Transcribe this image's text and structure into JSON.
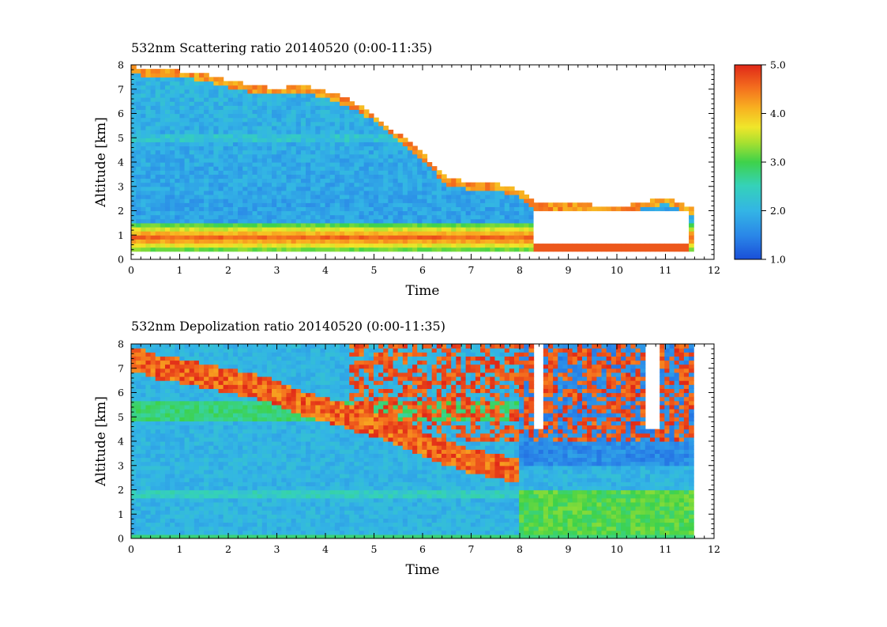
{
  "chart_data": [
    {
      "type": "heatmap",
      "title": "532nm Scattering ratio  20140520 (0:00-11:35)",
      "xlabel": "Time",
      "ylabel": "Altitude [km]",
      "xlim": [
        0,
        12
      ],
      "ylim": [
        0,
        8
      ],
      "x_ticks": [
        "0",
        "1",
        "2",
        "3",
        "4",
        "5",
        "6",
        "7",
        "8",
        "9",
        "10",
        "11",
        "12"
      ],
      "y_ticks": [
        "0",
        "1",
        "2",
        "3",
        "4",
        "5",
        "6",
        "7",
        "8"
      ],
      "data_time_range": [
        0,
        11.58
      ],
      "colorbar": {
        "range": [
          1.0,
          5.0
        ],
        "ticks": [
          "1.0",
          "2.0",
          "3.0",
          "4.0",
          "5.0"
        ]
      },
      "cloud_top_km": [
        [
          0,
          7.8
        ],
        [
          0.5,
          7.6
        ],
        [
          1.0,
          7.6
        ],
        [
          1.5,
          7.5
        ],
        [
          2.0,
          7.2
        ],
        [
          2.5,
          7.0
        ],
        [
          3.0,
          6.9
        ],
        [
          3.5,
          7.0
        ],
        [
          4.0,
          6.8
        ],
        [
          4.5,
          6.4
        ],
        [
          5.0,
          5.8
        ],
        [
          5.5,
          5.0
        ],
        [
          6.0,
          4.2
        ],
        [
          6.5,
          3.2
        ],
        [
          7.0,
          3.0
        ],
        [
          7.5,
          3.0
        ],
        [
          8.0,
          2.7
        ],
        [
          8.3,
          2.2
        ],
        [
          9.0,
          2.1
        ],
        [
          9.5,
          2.1
        ],
        [
          10.0,
          2.0
        ],
        [
          10.5,
          2.2
        ],
        [
          11.0,
          2.4
        ],
        [
          11.5,
          2.0
        ]
      ],
      "boundary_layer": {
        "bottom_km": 0.4,
        "top_km": 1.5,
        "value_range": [
          3.5,
          5.0
        ]
      },
      "low_cloud": {
        "time_range": [
          8.3,
          11.5
        ],
        "base_km": 0.5,
        "top_km": 2.1
      }
    },
    {
      "type": "heatmap",
      "title": "532nm Depolization ratio  20140520 (0:00-11:35)",
      "xlabel": "Time",
      "ylabel": "Altitude [km]",
      "xlim": [
        0,
        12
      ],
      "ylim": [
        0,
        8
      ],
      "x_ticks": [
        "0",
        "1",
        "2",
        "3",
        "4",
        "5",
        "6",
        "7",
        "8",
        "9",
        "10",
        "11",
        "12"
      ],
      "y_ticks": [
        "0",
        "1",
        "2",
        "3",
        "4",
        "5",
        "6",
        "7",
        "8"
      ],
      "data_time_range": [
        0,
        11.58
      ],
      "dust_layer_top_km": [
        [
          0,
          7.9
        ],
        [
          0.5,
          7.6
        ],
        [
          1.0,
          7.4
        ],
        [
          1.5,
          7.2
        ],
        [
          2.0,
          7.0
        ],
        [
          2.5,
          6.8
        ],
        [
          3.0,
          6.5
        ],
        [
          3.5,
          6.1
        ],
        [
          4.0,
          5.8
        ],
        [
          4.5,
          5.5
        ],
        [
          5.0,
          5.2
        ],
        [
          5.5,
          4.8
        ],
        [
          6.0,
          4.4
        ],
        [
          6.5,
          4.0
        ],
        [
          7.0,
          3.7
        ],
        [
          7.5,
          3.5
        ],
        [
          8.0,
          3.3
        ]
      ],
      "dust_layer_thickness_km": 1.0,
      "noisy_region": {
        "time_range": [
          4.5,
          11.58
        ],
        "altitude_range_km": [
          4.0,
          8.0
        ]
      },
      "blank_gaps": [
        [
          8.25,
          8.5
        ],
        [
          10.6,
          10.85
        ]
      ]
    }
  ]
}
